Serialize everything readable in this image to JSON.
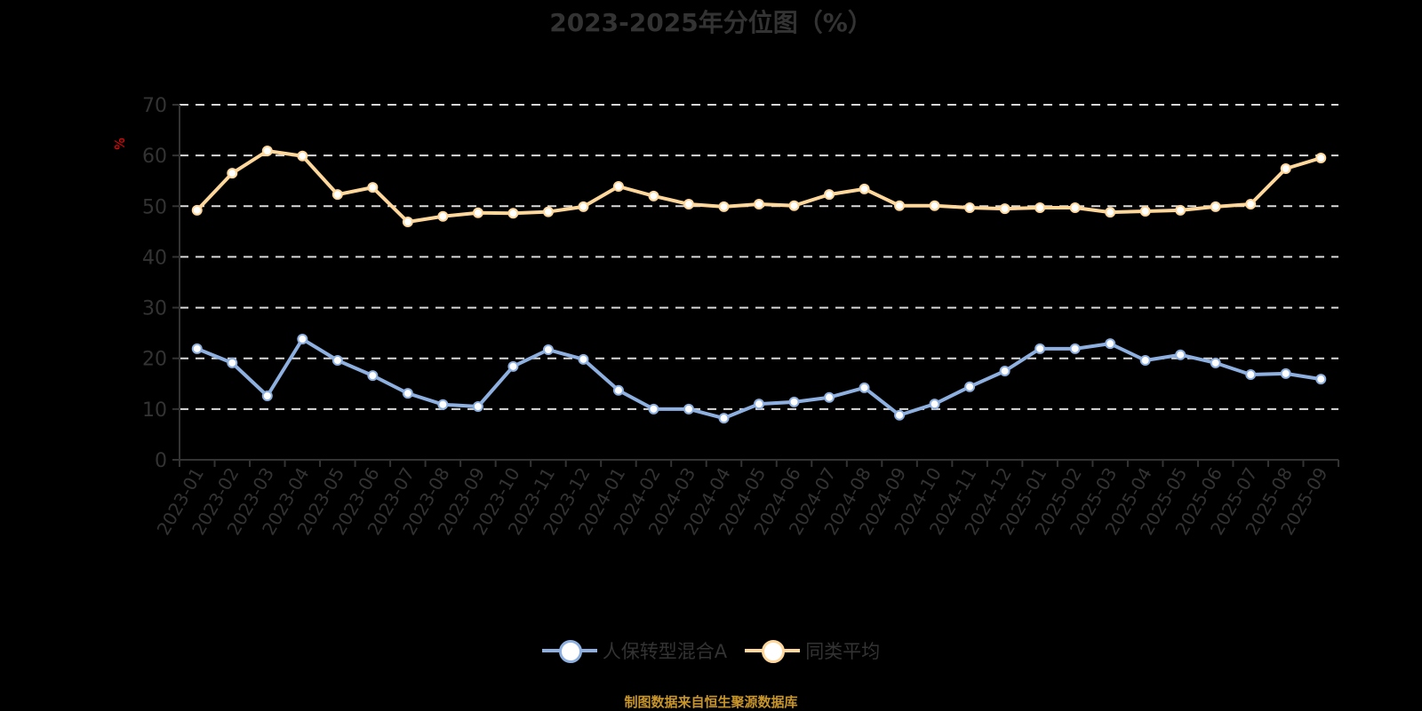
{
  "title": "2023-2025年分位图（%）",
  "footer": "制图数据来自恒生聚源数据库",
  "colors": {
    "series1": "#8eb0e0",
    "series2": "#ffd79a",
    "grid": "#d9d9d9",
    "axis": "#333333",
    "unit": "#ff0000",
    "footer": "#c8952a"
  },
  "legend": [
    {
      "label": "人保转型混合A",
      "color": "#8eb0e0"
    },
    {
      "label": "同类平均",
      "color": "#ffd79a"
    }
  ],
  "chart_data": {
    "type": "line",
    "title": "2023-2025年分位图（%）",
    "xlabel": "",
    "ylabel": "%",
    "ylim": [
      0,
      70
    ],
    "yticks": [
      0,
      10,
      20,
      30,
      40,
      50,
      60,
      70
    ],
    "grid": true,
    "legend_position": "bottom",
    "categories": [
      "2023-01",
      "2023-02",
      "2023-03",
      "2023-04",
      "2023-05",
      "2023-06",
      "2023-07",
      "2023-08",
      "2023-09",
      "2023-10",
      "2023-11",
      "2023-12",
      "2024-01",
      "2024-02",
      "2024-03",
      "2024-04",
      "2024-05",
      "2024-06",
      "2024-07",
      "2024-08",
      "2024-09",
      "2024-10",
      "2024-11",
      "2024-12",
      "2025-01",
      "2025-02",
      "2025-03",
      "2025-04",
      "2025-05",
      "2025-06",
      "2025-07",
      "2025-08",
      "2025-09"
    ],
    "series": [
      {
        "name": "人保转型混合A",
        "color": "#8eb0e0",
        "values": [
          21.9,
          19.1,
          12.6,
          23.8,
          19.6,
          16.6,
          13.1,
          10.9,
          10.5,
          18.4,
          21.7,
          19.8,
          13.7,
          10.0,
          10.0,
          8.2,
          11.0,
          11.4,
          12.3,
          14.2,
          8.8,
          11.0,
          14.4,
          17.5,
          21.9,
          21.9,
          22.9,
          19.6,
          20.7,
          19.1,
          16.8,
          17.0,
          15.9
        ]
      },
      {
        "name": "同类平均",
        "color": "#ffd79a",
        "values": [
          49.2,
          56.5,
          60.9,
          59.9,
          52.3,
          53.7,
          46.9,
          48.0,
          48.7,
          48.6,
          48.9,
          49.9,
          53.9,
          52.0,
          50.4,
          49.9,
          50.4,
          50.1,
          52.3,
          53.4,
          50.1,
          50.1,
          49.7,
          49.5,
          49.7,
          49.7,
          48.8,
          49.0,
          49.2,
          49.9,
          50.4,
          57.4,
          59.5
        ]
      }
    ]
  }
}
